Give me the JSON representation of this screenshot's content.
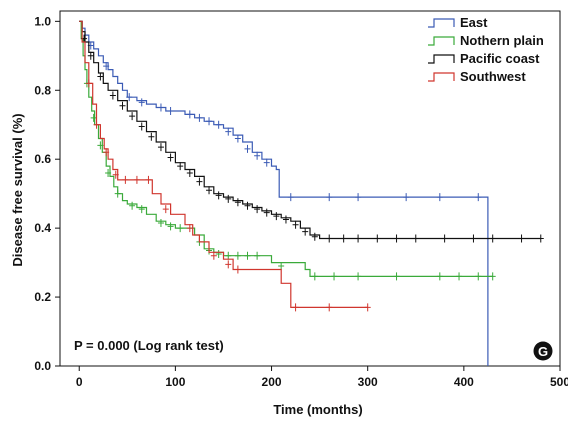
{
  "chart_data": {
    "type": "line",
    "subtype": "kaplan-meier step",
    "xlabel": "Time (months)",
    "ylabel": "Disease free survival (%)",
    "xlim": [
      -20,
      500
    ],
    "ylim": [
      0,
      1.03
    ],
    "xticks": [
      0,
      100,
      200,
      300,
      400,
      500
    ],
    "yticks": [
      0.0,
      0.2,
      0.4,
      0.6,
      0.8,
      1.0
    ],
    "ytick_labels": [
      "0.0",
      "0.2",
      "0.4",
      "0.6",
      "0.8",
      "1.0"
    ],
    "grid": false,
    "legend_position": "top-right",
    "annotation": "P = 0.000 (Log rank test)",
    "panel_label": "G",
    "series": [
      {
        "name": "East",
        "color": "#3b5bb5",
        "points": [
          [
            0,
            1.0
          ],
          [
            3,
            0.98
          ],
          [
            6,
            0.96
          ],
          [
            10,
            0.94
          ],
          [
            15,
            0.92
          ],
          [
            20,
            0.9
          ],
          [
            25,
            0.88
          ],
          [
            30,
            0.86
          ],
          [
            35,
            0.84
          ],
          [
            40,
            0.82
          ],
          [
            45,
            0.8
          ],
          [
            50,
            0.78
          ],
          [
            60,
            0.77
          ],
          [
            70,
            0.76
          ],
          [
            80,
            0.75
          ],
          [
            90,
            0.74
          ],
          [
            100,
            0.74
          ],
          [
            110,
            0.73
          ],
          [
            120,
            0.72
          ],
          [
            130,
            0.71
          ],
          [
            140,
            0.7
          ],
          [
            150,
            0.69
          ],
          [
            160,
            0.67
          ],
          [
            170,
            0.65
          ],
          [
            180,
            0.62
          ],
          [
            190,
            0.6
          ],
          [
            200,
            0.58
          ],
          [
            205,
            0.57
          ],
          [
            208,
            0.49
          ],
          [
            300,
            0.49
          ],
          [
            380,
            0.49
          ],
          [
            425,
            0.49
          ],
          [
            425,
            0.0
          ]
        ],
        "censored": [
          [
            12,
            0.93
          ],
          [
            28,
            0.87
          ],
          [
            52,
            0.78
          ],
          [
            65,
            0.765
          ],
          [
            85,
            0.75
          ],
          [
            95,
            0.74
          ],
          [
            115,
            0.73
          ],
          [
            125,
            0.72
          ],
          [
            135,
            0.71
          ],
          [
            145,
            0.7
          ],
          [
            155,
            0.68
          ],
          [
            165,
            0.66
          ],
          [
            175,
            0.63
          ],
          [
            185,
            0.61
          ],
          [
            195,
            0.59
          ],
          [
            220,
            0.49
          ],
          [
            260,
            0.49
          ],
          [
            290,
            0.49
          ],
          [
            340,
            0.49
          ],
          [
            375,
            0.49
          ],
          [
            415,
            0.49
          ]
        ]
      },
      {
        "name": "Nothern plain",
        "color": "#3aaa3a",
        "points": [
          [
            0,
            1.0
          ],
          [
            2,
            0.95
          ],
          [
            4,
            0.9
          ],
          [
            6,
            0.86
          ],
          [
            8,
            0.82
          ],
          [
            10,
            0.78
          ],
          [
            13,
            0.74
          ],
          [
            16,
            0.7
          ],
          [
            20,
            0.66
          ],
          [
            24,
            0.62
          ],
          [
            28,
            0.58
          ],
          [
            32,
            0.55
          ],
          [
            36,
            0.52
          ],
          [
            40,
            0.5
          ],
          [
            45,
            0.48
          ],
          [
            50,
            0.47
          ],
          [
            60,
            0.46
          ],
          [
            70,
            0.44
          ],
          [
            80,
            0.42
          ],
          [
            90,
            0.41
          ],
          [
            100,
            0.4
          ],
          [
            110,
            0.4
          ],
          [
            120,
            0.38
          ],
          [
            130,
            0.34
          ],
          [
            140,
            0.33
          ],
          [
            150,
            0.32
          ],
          [
            200,
            0.3
          ],
          [
            235,
            0.28
          ],
          [
            240,
            0.26
          ],
          [
            430,
            0.26
          ]
        ],
        "censored": [
          [
            8,
            0.82
          ],
          [
            15,
            0.72
          ],
          [
            22,
            0.64
          ],
          [
            30,
            0.56
          ],
          [
            40,
            0.5
          ],
          [
            55,
            0.465
          ],
          [
            65,
            0.455
          ],
          [
            85,
            0.415
          ],
          [
            95,
            0.405
          ],
          [
            105,
            0.4
          ],
          [
            125,
            0.36
          ],
          [
            135,
            0.335
          ],
          [
            145,
            0.325
          ],
          [
            155,
            0.32
          ],
          [
            165,
            0.32
          ],
          [
            175,
            0.32
          ],
          [
            185,
            0.32
          ],
          [
            210,
            0.29
          ],
          [
            245,
            0.26
          ],
          [
            265,
            0.26
          ],
          [
            290,
            0.26
          ],
          [
            330,
            0.26
          ],
          [
            375,
            0.26
          ],
          [
            395,
            0.26
          ],
          [
            415,
            0.26
          ],
          [
            430,
            0.26
          ]
        ]
      },
      {
        "name": "Pacific coast",
        "color": "#111111",
        "points": [
          [
            0,
            1.0
          ],
          [
            3,
            0.97
          ],
          [
            6,
            0.94
          ],
          [
            10,
            0.91
          ],
          [
            15,
            0.88
          ],
          [
            20,
            0.85
          ],
          [
            25,
            0.82
          ],
          [
            30,
            0.8
          ],
          [
            40,
            0.77
          ],
          [
            50,
            0.74
          ],
          [
            60,
            0.71
          ],
          [
            70,
            0.68
          ],
          [
            80,
            0.65
          ],
          [
            90,
            0.62
          ],
          [
            100,
            0.59
          ],
          [
            110,
            0.57
          ],
          [
            120,
            0.55
          ],
          [
            130,
            0.52
          ],
          [
            140,
            0.5
          ],
          [
            150,
            0.49
          ],
          [
            160,
            0.48
          ],
          [
            170,
            0.47
          ],
          [
            180,
            0.46
          ],
          [
            190,
            0.45
          ],
          [
            200,
            0.44
          ],
          [
            210,
            0.43
          ],
          [
            220,
            0.42
          ],
          [
            230,
            0.4
          ],
          [
            240,
            0.38
          ],
          [
            250,
            0.37
          ],
          [
            480,
            0.37
          ]
        ],
        "censored": [
          [
            5,
            0.95
          ],
          [
            12,
            0.9
          ],
          [
            22,
            0.84
          ],
          [
            35,
            0.785
          ],
          [
            45,
            0.755
          ],
          [
            55,
            0.725
          ],
          [
            65,
            0.695
          ],
          [
            75,
            0.665
          ],
          [
            85,
            0.635
          ],
          [
            95,
            0.605
          ],
          [
            105,
            0.58
          ],
          [
            115,
            0.56
          ],
          [
            125,
            0.535
          ],
          [
            135,
            0.51
          ],
          [
            145,
            0.495
          ],
          [
            155,
            0.485
          ],
          [
            165,
            0.475
          ],
          [
            175,
            0.465
          ],
          [
            185,
            0.455
          ],
          [
            195,
            0.445
          ],
          [
            205,
            0.435
          ],
          [
            215,
            0.425
          ],
          [
            225,
            0.41
          ],
          [
            235,
            0.39
          ],
          [
            245,
            0.375
          ],
          [
            260,
            0.37
          ],
          [
            275,
            0.37
          ],
          [
            290,
            0.37
          ],
          [
            310,
            0.37
          ],
          [
            330,
            0.37
          ],
          [
            350,
            0.37
          ],
          [
            380,
            0.37
          ],
          [
            410,
            0.37
          ],
          [
            430,
            0.37
          ],
          [
            460,
            0.37
          ],
          [
            480,
            0.37
          ]
        ]
      },
      {
        "name": "Southwest",
        "color": "#d0362e",
        "points": [
          [
            0,
            1.0
          ],
          [
            3,
            0.94
          ],
          [
            6,
            0.88
          ],
          [
            10,
            0.82
          ],
          [
            14,
            0.76
          ],
          [
            18,
            0.7
          ],
          [
            22,
            0.66
          ],
          [
            26,
            0.63
          ],
          [
            30,
            0.6
          ],
          [
            35,
            0.57
          ],
          [
            40,
            0.54
          ],
          [
            50,
            0.54
          ],
          [
            75,
            0.54
          ],
          [
            76,
            0.5
          ],
          [
            85,
            0.47
          ],
          [
            95,
            0.44
          ],
          [
            110,
            0.41
          ],
          [
            118,
            0.38
          ],
          [
            125,
            0.36
          ],
          [
            135,
            0.33
          ],
          [
            150,
            0.31
          ],
          [
            160,
            0.28
          ],
          [
            210,
            0.24
          ],
          [
            220,
            0.17
          ],
          [
            300,
            0.17
          ]
        ],
        "censored": [
          [
            10,
            0.82
          ],
          [
            18,
            0.7
          ],
          [
            28,
            0.62
          ],
          [
            38,
            0.555
          ],
          [
            48,
            0.54
          ],
          [
            60,
            0.54
          ],
          [
            72,
            0.54
          ],
          [
            90,
            0.455
          ],
          [
            115,
            0.4
          ],
          [
            140,
            0.32
          ],
          [
            155,
            0.295
          ],
          [
            165,
            0.28
          ],
          [
            225,
            0.17
          ],
          [
            260,
            0.17
          ],
          [
            300,
            0.17
          ]
        ]
      }
    ]
  }
}
